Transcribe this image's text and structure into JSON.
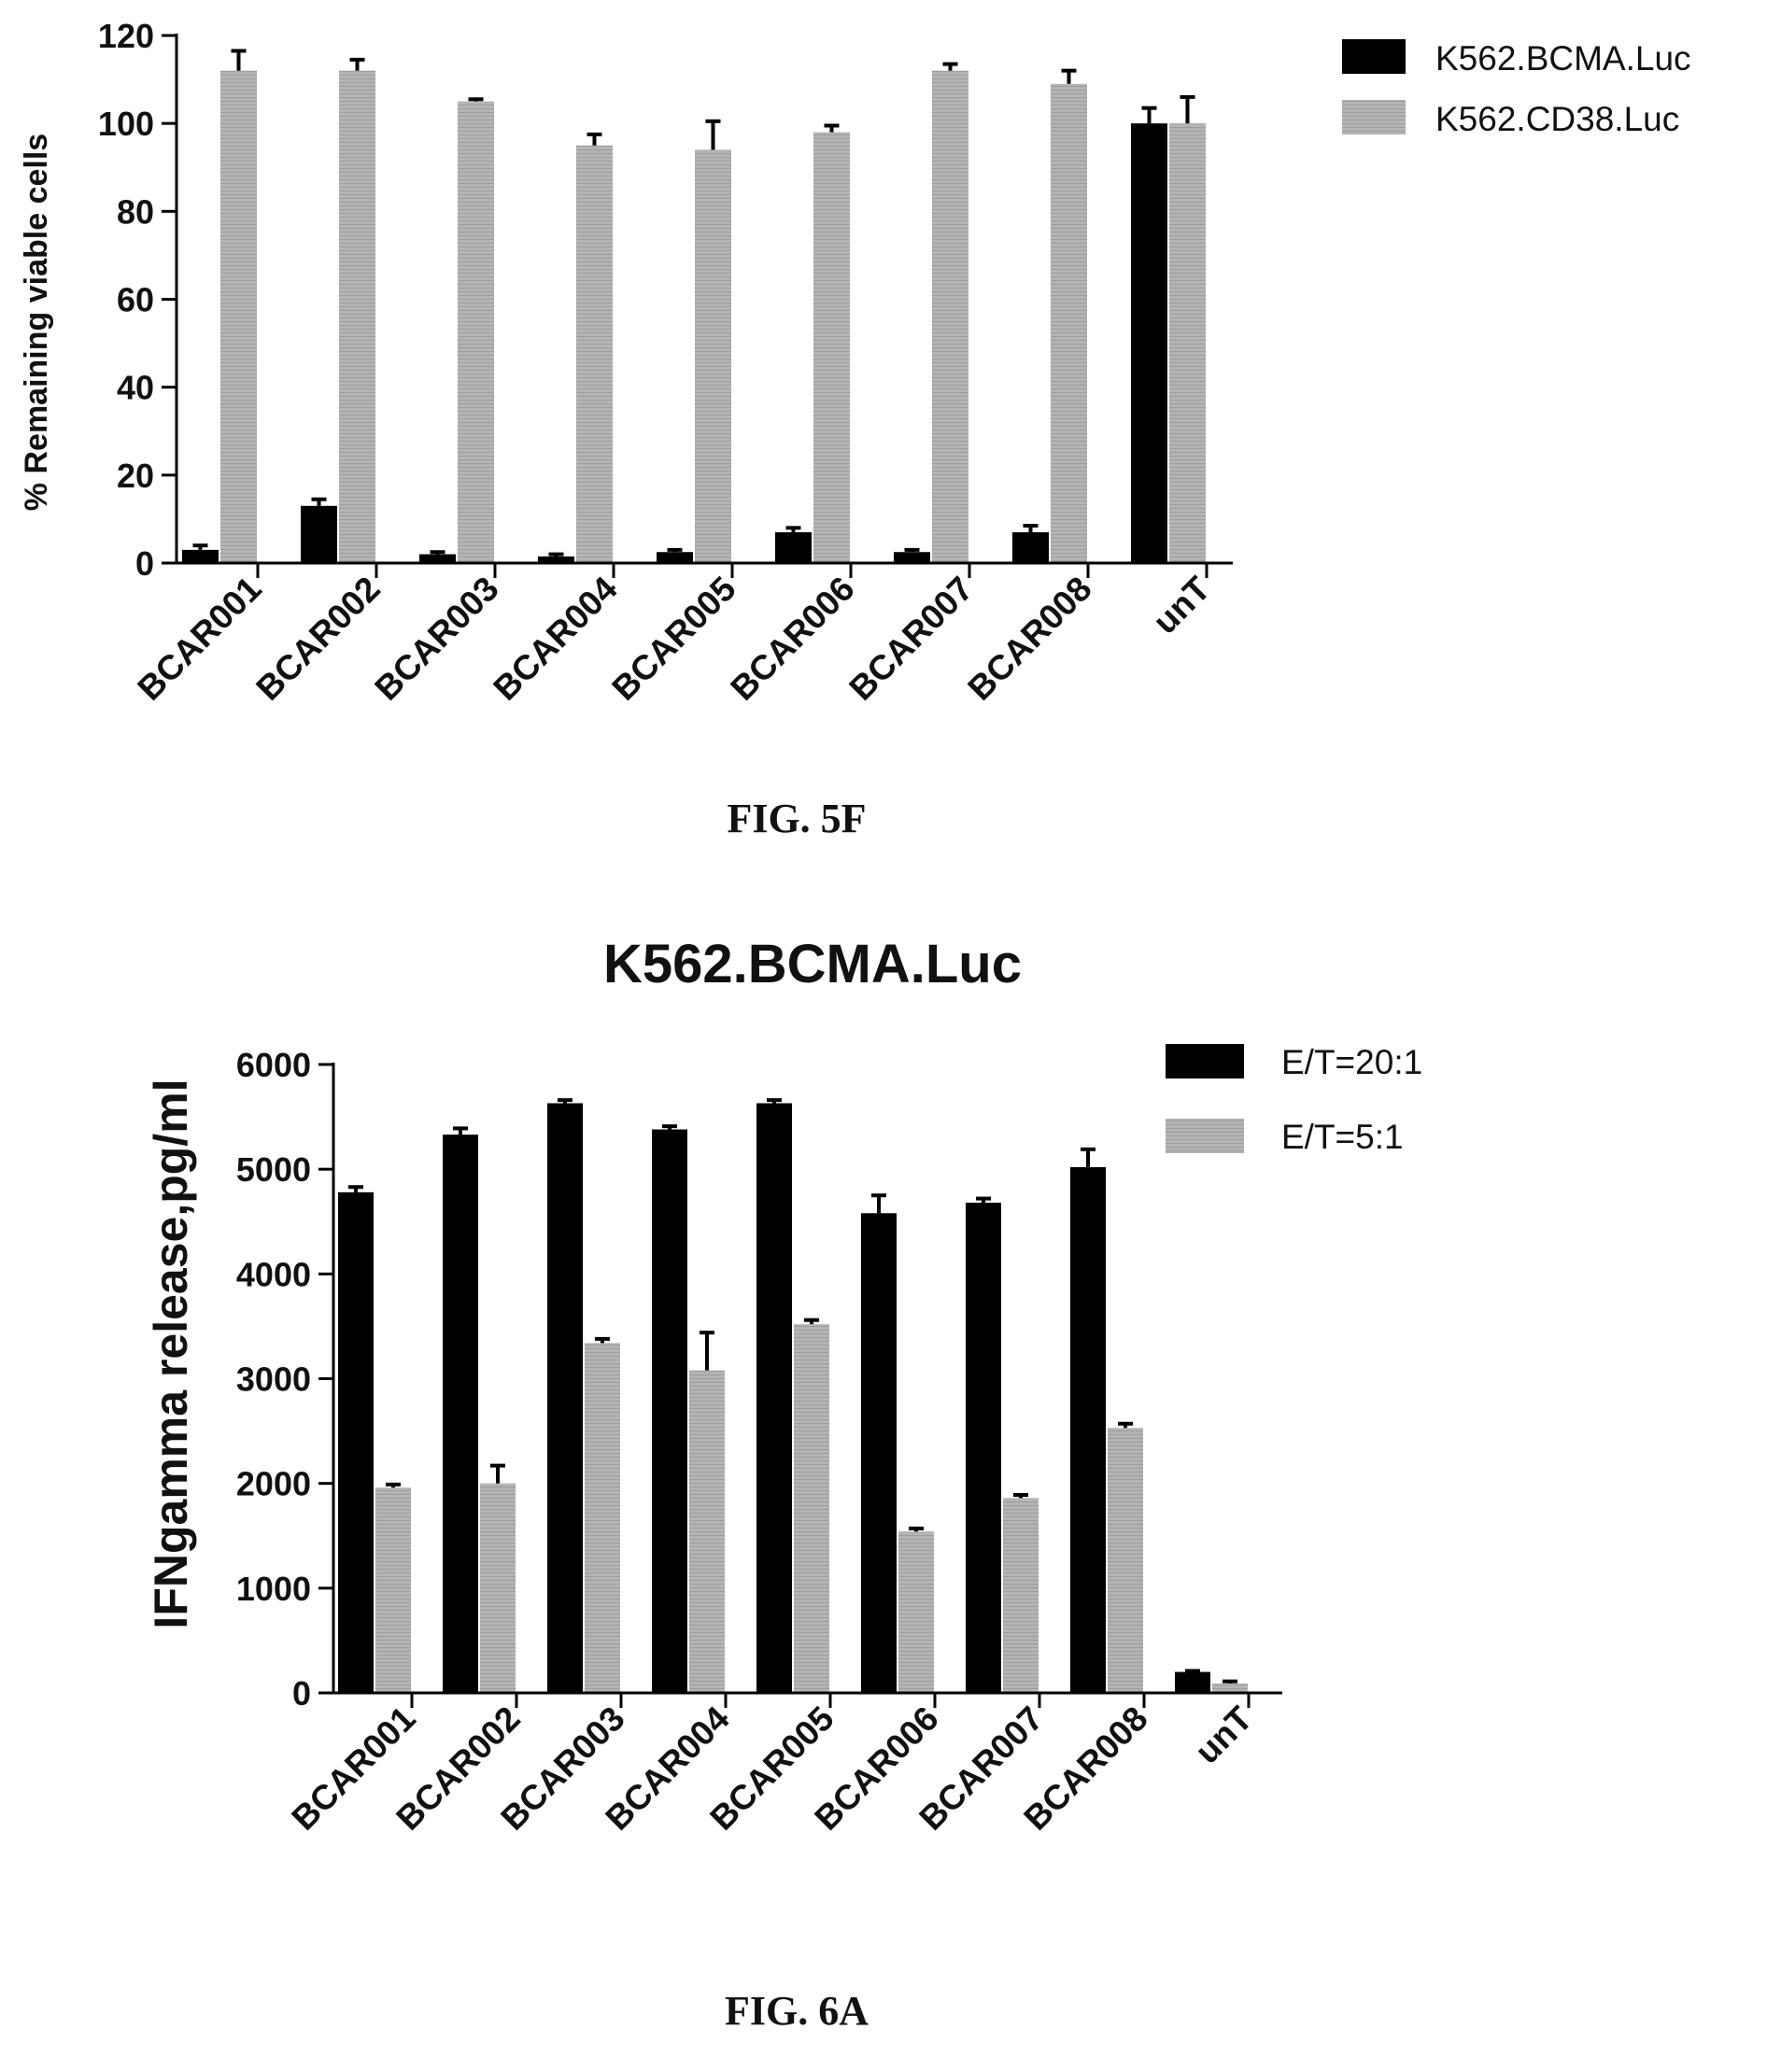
{
  "chart_data": [
    {
      "type": "bar",
      "title": "",
      "caption": "FIG. 5F",
      "xlabel": "",
      "ylabel": "% Remaining viable cells",
      "ylim": [
        0,
        120
      ],
      "yticks": [
        0,
        20,
        40,
        60,
        80,
        100,
        120
      ],
      "categories": [
        "BCAR001",
        "BCAR002",
        "BCAR003",
        "BCAR004",
        "BCAR005",
        "BCAR006",
        "BCAR007",
        "BCAR008",
        "unT"
      ],
      "series": [
        {
          "name": "K562.BCMA.Luc",
          "color": "#000000",
          "values": [
            3,
            13,
            2,
            1.5,
            2.5,
            7,
            2.5,
            7,
            100
          ],
          "errors": [
            1,
            1.5,
            0.5,
            0.5,
            0.5,
            1,
            0.5,
            1.5,
            3.5
          ]
        },
        {
          "name": "K562.CD38.Luc",
          "color": "#a8a8a8",
          "values": [
            112,
            112,
            105,
            95,
            94,
            98,
            112,
            109,
            100
          ],
          "errors": [
            4.5,
            2.5,
            0.5,
            2.5,
            6.5,
            1.5,
            1.5,
            3,
            6
          ]
        }
      ],
      "legend_position": "top-right",
      "grid": false
    },
    {
      "type": "bar",
      "title": "K562.BCMA.Luc",
      "caption": "FIG. 6A",
      "xlabel": "",
      "ylabel": "IFNgamma release,pg/ml",
      "ylim": [
        0,
        6000
      ],
      "yticks": [
        0,
        1000,
        2000,
        3000,
        4000,
        5000,
        6000
      ],
      "categories": [
        "BCAR001",
        "BCAR002",
        "BCAR003",
        "BCAR004",
        "BCAR005",
        "BCAR006",
        "BCAR007",
        "BCAR008",
        "unT"
      ],
      "series": [
        {
          "name": "E/T=20:1",
          "color": "#000000",
          "values": [
            4780,
            5330,
            5630,
            5380,
            5630,
            4580,
            4680,
            5020,
            200
          ],
          "errors": [
            50,
            60,
            30,
            30,
            30,
            170,
            40,
            170,
            10
          ]
        },
        {
          "name": "E/T=5:1",
          "color": "#a8a8a8",
          "values": [
            1960,
            2000,
            3340,
            3080,
            3520,
            1540,
            1860,
            2530,
            90
          ],
          "errors": [
            30,
            170,
            40,
            360,
            40,
            30,
            30,
            40,
            20
          ]
        }
      ],
      "legend_position": "top-right",
      "grid": false
    }
  ]
}
